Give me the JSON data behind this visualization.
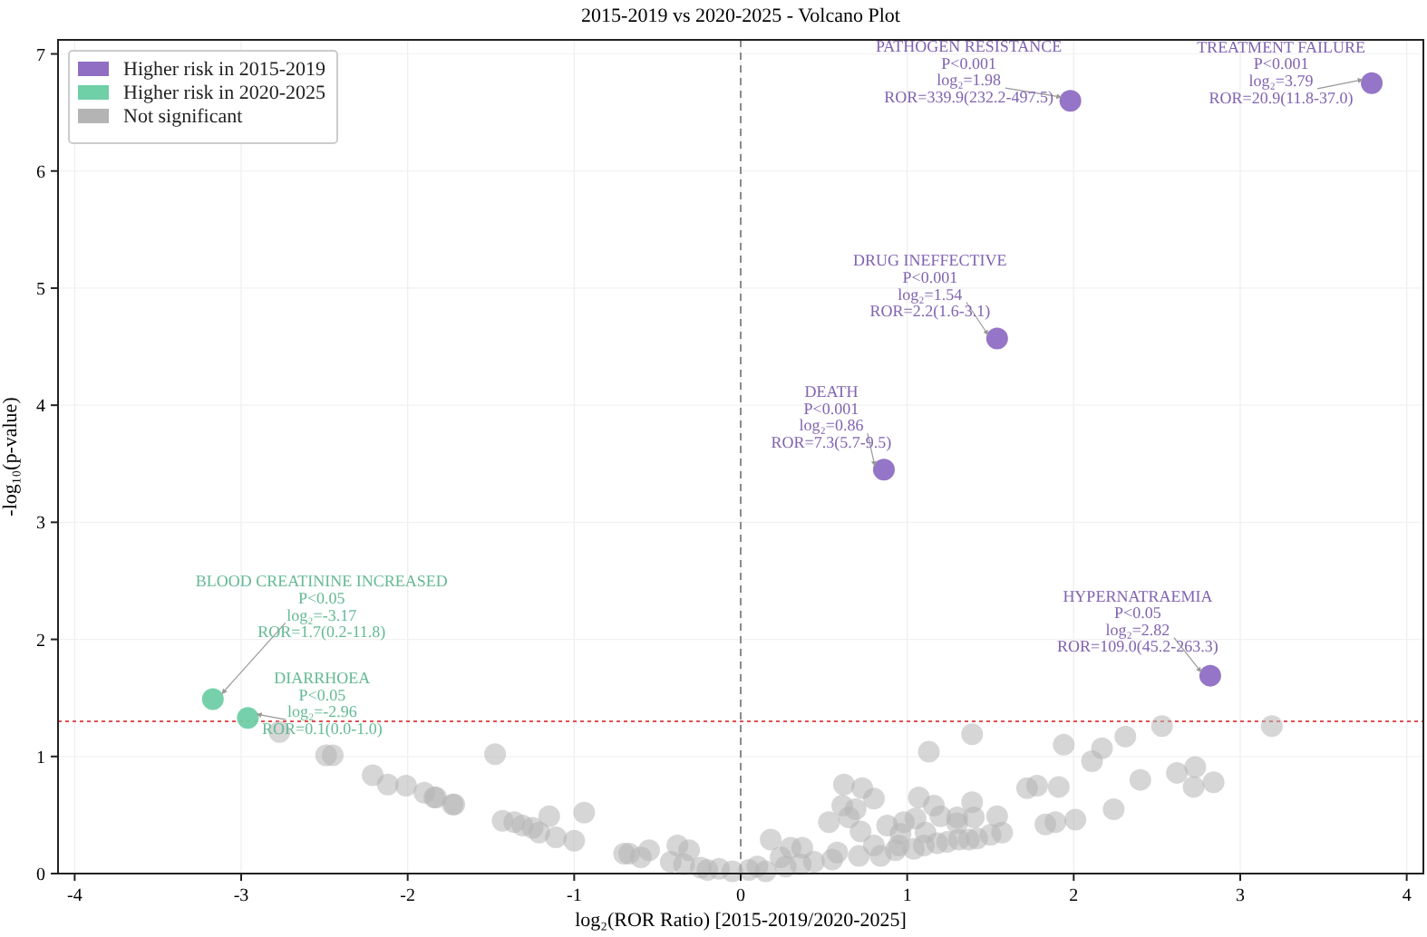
{
  "chart_data": {
    "type": "scatter",
    "title": "2015-2019 vs 2020-2025 - Volcano Plot",
    "xlabel": "log₂(ROR Ratio) [2015-2019/2020-2025]",
    "ylabel": "-log₁₀(p-value)",
    "xlim": [
      -4.1,
      4.1
    ],
    "ylim": [
      0,
      7.12
    ],
    "xticks": [
      -4,
      -3,
      -2,
      -1,
      0,
      1,
      2,
      3,
      4
    ],
    "yticks": [
      0,
      1,
      2,
      3,
      4,
      5,
      6,
      7
    ],
    "grid": true,
    "legend": "top left",
    "marker": "circle",
    "ref_lines": [
      {
        "axis": "y",
        "value": 1.3,
        "color": "#e05050",
        "line_style": "dotted"
      },
      {
        "axis": "x",
        "value": 0,
        "color": "#808080",
        "line_style": "dashed"
      }
    ],
    "series": [
      {
        "name": "Higher risk in 2015-2019",
        "color": "#8f6ec4",
        "x": [
          3.79,
          1.98,
          1.54,
          0.86,
          2.82
        ],
        "values": [
          6.75,
          6.6,
          4.57,
          3.45,
          1.69
        ]
      },
      {
        "name": "Higher risk in 2020-2025",
        "color": "#6fcfa6",
        "x": [
          -3.17,
          -2.96
        ],
        "values": [
          1.49,
          1.33
        ]
      },
      {
        "name": "Not significant",
        "color": "#b4b4b4",
        "x": [
          -2.77,
          -2.49,
          -2.45,
          -2.21,
          -2.12,
          -2.01,
          -1.9,
          -1.84,
          -1.83,
          -1.73,
          -1.72,
          -1.475,
          -1.43,
          -1.36,
          -1.31,
          -1.25,
          -1.21,
          -1.15,
          -1.11,
          -1.0,
          -0.94,
          -0.7,
          -0.67,
          -0.6,
          -0.55,
          -0.42,
          -0.38,
          -0.34,
          -0.31,
          -0.24,
          -0.2,
          -0.13,
          -0.05,
          0.05,
          0.1,
          0.15,
          0.18,
          0.24,
          0.27,
          0.3,
          0.36,
          0.37,
          0.44,
          0.53,
          0.55,
          0.58,
          0.61,
          0.62,
          0.65,
          0.69,
          0.71,
          0.72,
          0.73,
          0.8,
          0.8,
          0.84,
          0.88,
          0.93,
          0.95,
          0.96,
          0.98,
          1.04,
          1.05,
          1.07,
          1.1,
          1.11,
          1.13,
          1.16,
          1.18,
          1.2,
          1.24,
          1.3,
          1.3,
          1.31,
          1.37,
          1.39,
          1.39,
          1.4,
          1.42,
          1.5,
          1.54,
          1.57,
          1.72,
          1.78,
          1.83,
          1.89,
          1.91,
          1.94,
          2.01,
          2.11,
          2.17,
          2.24,
          2.31,
          2.4,
          2.53,
          2.62,
          2.72,
          2.73,
          2.84,
          3.19
        ],
        "values": [
          1.21,
          1.01,
          1.01,
          0.84,
          0.76,
          0.75,
          0.69,
          0.65,
          0.65,
          0.59,
          0.59,
          1.02,
          0.45,
          0.44,
          0.41,
          0.39,
          0.35,
          0.49,
          0.31,
          0.28,
          0.52,
          0.17,
          0.17,
          0.14,
          0.2,
          0.1,
          0.24,
          0.08,
          0.2,
          0.05,
          0.03,
          0.04,
          0.02,
          0.03,
          0.06,
          0.02,
          0.29,
          0.14,
          0.06,
          0.22,
          0.08,
          0.22,
          0.1,
          0.44,
          0.12,
          0.18,
          0.58,
          0.76,
          0.48,
          0.55,
          0.15,
          0.36,
          0.73,
          0.64,
          0.24,
          0.15,
          0.41,
          0.2,
          0.24,
          0.34,
          0.44,
          0.21,
          0.47,
          0.65,
          0.24,
          0.35,
          1.04,
          0.58,
          0.26,
          0.49,
          0.27,
          0.48,
          0.43,
          0.29,
          0.29,
          1.19,
          0.61,
          0.48,
          0.3,
          0.33,
          0.49,
          0.35,
          0.73,
          0.75,
          0.42,
          0.44,
          0.74,
          1.1,
          0.46,
          0.96,
          1.07,
          0.55,
          1.17,
          0.8,
          1.26,
          0.86,
          0.74,
          0.91,
          0.78,
          1.26
        ]
      }
    ],
    "annotations": [
      {
        "text": "TREATMENT FAILURE\nP<0.001\nlog₂=3.79\nROR=20.9(11.8-37.0)",
        "x": 3.79,
        "y": 6.75
      },
      {
        "text": "PATHOGEN RESISTANCE\nP<0.001\nlog₂=1.98\nROR=339.9(232.2-497.5)",
        "x": 1.98,
        "y": 6.6
      },
      {
        "text": "DRUG INEFFECTIVE\nP<0.001\nlog₂=1.54\nROR=2.2(1.6-3.1)",
        "x": 1.54,
        "y": 4.57
      },
      {
        "text": "DEATH\nP<0.001\nlog₂=0.86\nROR=7.3(5.7-9.5)",
        "x": 0.86,
        "y": 3.45
      },
      {
        "text": "HYPERNATRAEMIA\nP<0.05\nlog₂=2.82\nROR=109.0(45.2-263.3)",
        "x": 2.82,
        "y": 1.69
      },
      {
        "text": "BLOOD CREATININE INCREASED\nP<0.05\nlog₂=-3.17\nROR=1.7(0.2-11.8)",
        "x": -3.17,
        "y": 1.49
      },
      {
        "text": "DIARRHOEA\nP<0.05\nlog₂=-2.96\nROR=0.1(0.0-1.0)",
        "x": -2.96,
        "y": 1.33
      }
    ]
  }
}
